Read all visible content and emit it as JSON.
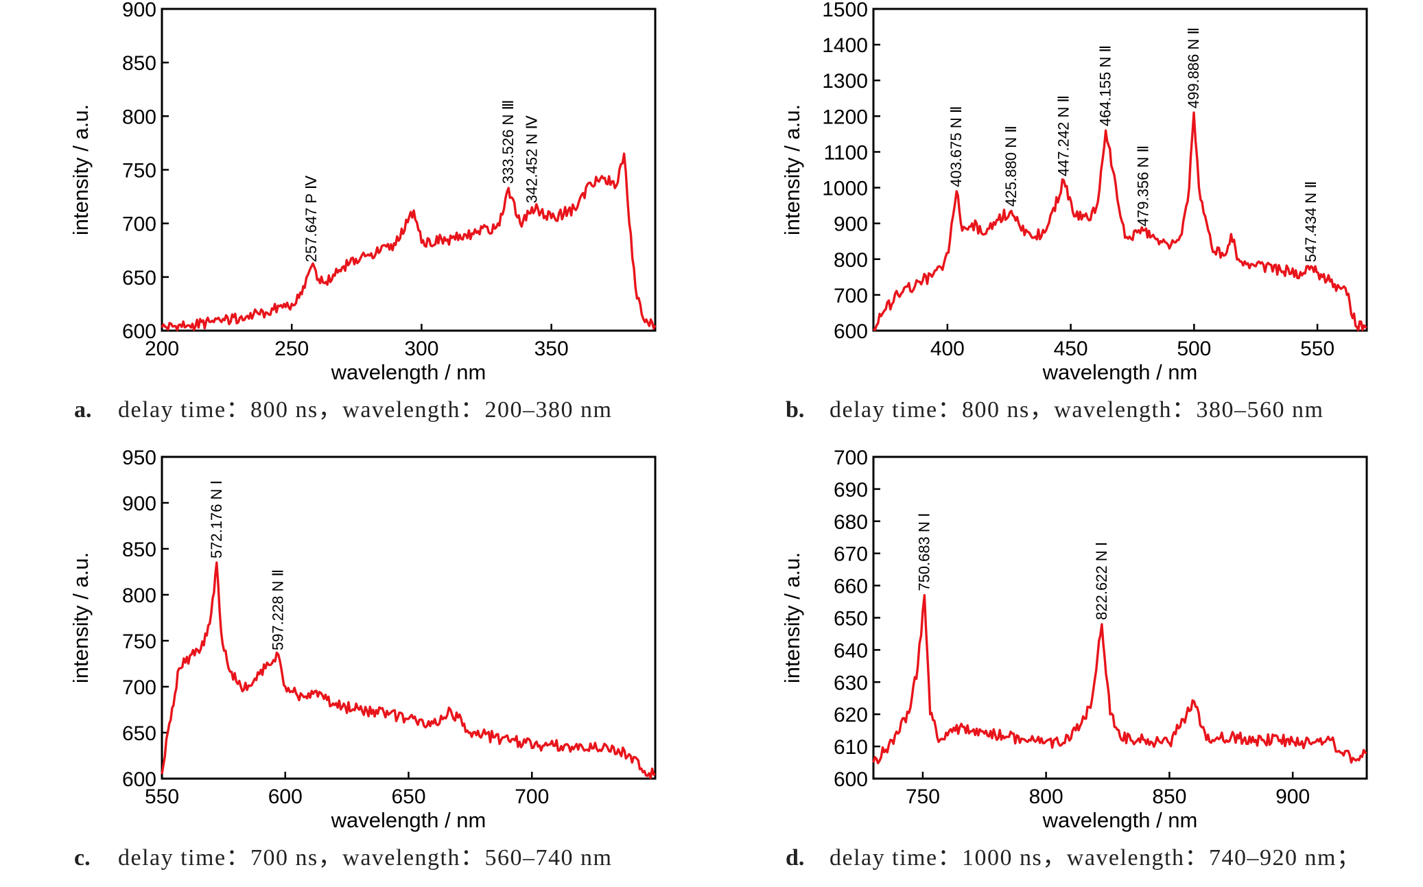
{
  "chart_data": [
    {
      "id": "a",
      "type": "line",
      "xlabel": "wavelength / nm",
      "ylabel": "intensity / a.u.",
      "xlim": [
        200,
        390
      ],
      "ylim": [
        600,
        900
      ],
      "xticks": [
        200,
        250,
        300,
        350
      ],
      "yticks": [
        600,
        650,
        700,
        750,
        800,
        850,
        900
      ],
      "caption_letter": "a.",
      "caption": "delay time：800 ns，wavelength：200–380 nm",
      "series": [
        {
          "color": "#e8141b",
          "x": [
            200,
            210,
            220,
            230,
            240,
            250,
            255,
            257.6,
            262,
            270,
            280,
            290,
            297,
            300,
            310,
            320,
            330,
            333.5,
            338,
            342.5,
            350,
            360,
            365,
            370,
            375,
            378,
            380,
            383,
            386,
            390
          ],
          "y": [
            603,
            605,
            608,
            612,
            617,
            625,
            640,
            660,
            645,
            660,
            670,
            680,
            712,
            682,
            685,
            690,
            698,
            733,
            700,
            715,
            705,
            715,
            738,
            742,
            735,
            765,
            700,
            630,
            608,
            605
          ]
        }
      ],
      "annotations": [
        {
          "text": "257.647 P Ⅳ",
          "x": 257.6,
          "y": 660
        },
        {
          "text": "333.526 N Ⅲ",
          "x": 333.5,
          "y": 733
        },
        {
          "text": "342.452 N Ⅳ",
          "x": 342.5,
          "y": 715
        }
      ]
    },
    {
      "id": "b",
      "type": "line",
      "xlabel": "wavelength / nm",
      "ylabel": "intensity / a.u.",
      "xlim": [
        370,
        570
      ],
      "ylim": [
        600,
        1500
      ],
      "xticks": [
        400,
        450,
        500,
        550
      ],
      "yticks": [
        600,
        700,
        800,
        900,
        1000,
        1100,
        1200,
        1300,
        1400,
        1500
      ],
      "caption_letter": "b.",
      "caption": "delay time：800 ns，wavelength：380–560 nm",
      "series": [
        {
          "color": "#e8141b",
          "x": [
            370,
            375,
            380,
            390,
            398,
            401,
            403.7,
            406,
            410,
            415,
            420,
            425.9,
            430,
            435,
            440,
            447.2,
            452,
            458,
            461,
            464.2,
            467,
            472,
            479.4,
            484,
            490,
            495,
            498,
            499.9,
            502,
            507,
            512,
            515,
            518,
            525,
            535,
            545,
            547.4,
            552,
            557,
            562,
            566,
            570
          ],
          "y": [
            605,
            660,
            700,
            740,
            770,
            850,
            990,
            880,
            900,
            870,
            910,
            935,
            880,
            860,
            880,
            1020,
            920,
            910,
            960,
            1160,
            1050,
            860,
            880,
            860,
            830,
            870,
            1000,
            1210,
            1000,
            840,
            810,
            870,
            800,
            780,
            770,
            760,
            780,
            750,
            730,
            700,
            610,
            608
          ]
        }
      ],
      "annotations": [
        {
          "text": "403.675 N Ⅱ",
          "x": 403.7,
          "y": 990
        },
        {
          "text": "425.880 N Ⅱ",
          "x": 425.9,
          "y": 935
        },
        {
          "text": "447.242 N Ⅱ",
          "x": 447.2,
          "y": 1020
        },
        {
          "text": "464.155 N Ⅱ",
          "x": 464.2,
          "y": 1160
        },
        {
          "text": "479.356 N Ⅱ",
          "x": 479.4,
          "y": 880
        },
        {
          "text": "499.886 N Ⅱ",
          "x": 499.9,
          "y": 1210
        },
        {
          "text": "547.434 N Ⅱ",
          "x": 547.4,
          "y": 780
        }
      ]
    },
    {
      "id": "c",
      "type": "line",
      "xlabel": "wavelength / nm",
      "ylabel": "intensity / a.u.",
      "xlim": [
        550,
        750
      ],
      "ylim": [
        600,
        950
      ],
      "xticks": [
        550,
        600,
        650,
        700
      ],
      "yticks": [
        600,
        650,
        700,
        750,
        800,
        850,
        900,
        950
      ],
      "caption_letter": "c.",
      "caption": "delay time：700 ns，wavelength：560–740 nm",
      "series": [
        {
          "color": "#e8141b",
          "x": [
            550,
            553,
            557,
            562,
            567,
            570,
            572.2,
            574,
            577,
            582,
            587,
            592,
            597.2,
            600,
            605,
            612,
            620,
            630,
            640,
            650,
            660,
            667,
            675,
            685,
            695,
            705,
            715,
            725,
            735,
            740,
            745,
            750
          ],
          "y": [
            605,
            660,
            720,
            735,
            745,
            780,
            835,
            760,
            720,
            700,
            705,
            720,
            735,
            700,
            690,
            695,
            680,
            675,
            672,
            665,
            660,
            675,
            650,
            645,
            640,
            636,
            635,
            633,
            632,
            625,
            607,
            605
          ]
        }
      ],
      "annotations": [
        {
          "text": "572.176 N Ⅰ",
          "x": 572.2,
          "y": 835
        },
        {
          "text": "597.228 N Ⅱ",
          "x": 597.2,
          "y": 735
        }
      ]
    },
    {
      "id": "d",
      "type": "line",
      "xlabel": "wavelength / nm",
      "ylabel": "intensity / a.u.",
      "xlim": [
        730,
        930
      ],
      "ylim": [
        600,
        700
      ],
      "xticks": [
        750,
        800,
        850,
        900
      ],
      "yticks": [
        600,
        610,
        620,
        630,
        640,
        650,
        660,
        670,
        680,
        690,
        700
      ],
      "caption_letter": "d.",
      "caption": "delay time：1000 ns，wavelength：740–920 nm；",
      "series": [
        {
          "color": "#e8141b",
          "x": [
            730,
            735,
            740,
            745,
            748,
            750.7,
            753,
            757,
            765,
            775,
            785,
            795,
            805,
            812,
            818,
            822.6,
            826,
            830,
            840,
            850,
            860,
            865,
            875,
            885,
            895,
            905,
            915,
            920,
            925,
            930
          ],
          "y": [
            605,
            609,
            614,
            622,
            635,
            657,
            620,
            612,
            616,
            614,
            613,
            612,
            611,
            615,
            622,
            648,
            620,
            613,
            612,
            611,
            624,
            612,
            613,
            612,
            612,
            611,
            612,
            608,
            606,
            608
          ]
        }
      ],
      "annotations": [
        {
          "text": "750.683 N Ⅰ",
          "x": 750.7,
          "y": 657
        },
        {
          "text": "822.622 N Ⅰ",
          "x": 822.6,
          "y": 648
        }
      ]
    }
  ]
}
